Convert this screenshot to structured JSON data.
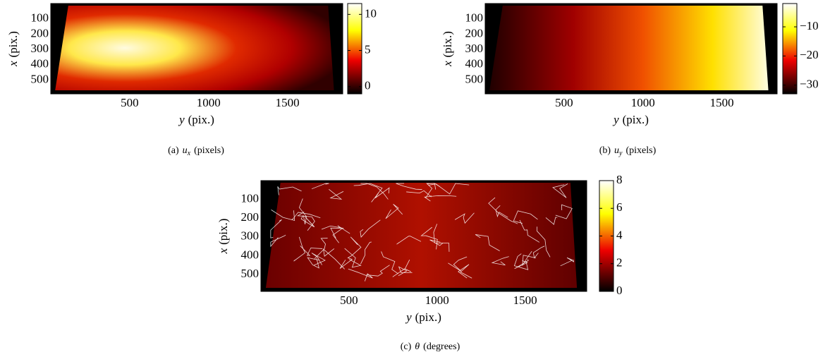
{
  "chart_data": [
    {
      "type": "heatmap",
      "colormap": "hot",
      "caption_label": "(a)",
      "caption_var": "u",
      "caption_sub": "x",
      "caption_unit": "(pixels)",
      "xlabel_var": "y",
      "xlabel_unit": "(pix.)",
      "ylabel_var": "x",
      "ylabel_unit": "(pix.)",
      "xlim": [
        0,
        1850
      ],
      "xticks": [
        500,
        1000,
        1500
      ],
      "ylim": [
        0,
        590
      ],
      "yticks": [
        100,
        200,
        300,
        400,
        500
      ],
      "clim": [
        -1,
        11.5
      ],
      "cticks": [
        0,
        5,
        10
      ]
    },
    {
      "type": "heatmap",
      "colormap": "hot",
      "caption_label": "(b)",
      "caption_var": "u",
      "caption_sub": "y",
      "caption_unit": "(pixels)",
      "xlabel_var": "y",
      "xlabel_unit": "(pix.)",
      "ylabel_var": "x",
      "ylabel_unit": "(pix.)",
      "xlim": [
        0,
        1850
      ],
      "xticks": [
        500,
        1000,
        1500
      ],
      "ylim": [
        0,
        590
      ],
      "yticks": [
        100,
        200,
        300,
        400,
        500
      ],
      "clim": [
        -33,
        -2
      ],
      "cticks": [
        {
          "value": -30,
          "label": "−30"
        },
        {
          "value": -20,
          "label": "−20"
        },
        {
          "value": -10,
          "label": "−10"
        }
      ]
    },
    {
      "type": "heatmap",
      "colormap": "hot",
      "caption_label": "(c)",
      "caption_var": "θ",
      "caption_unit": "(degrees)",
      "xlabel_var": "y",
      "xlabel_unit": "(pix.)",
      "ylabel_var": "x",
      "ylabel_unit": "(pix.)",
      "xlim": [
        0,
        1850
      ],
      "xticks": [
        500,
        1000,
        1500
      ],
      "ylim": [
        0,
        590
      ],
      "yticks": [
        100,
        200,
        300,
        400,
        500
      ],
      "clim": [
        0,
        8
      ],
      "cticks": [
        0,
        2,
        4,
        6,
        8
      ]
    }
  ]
}
